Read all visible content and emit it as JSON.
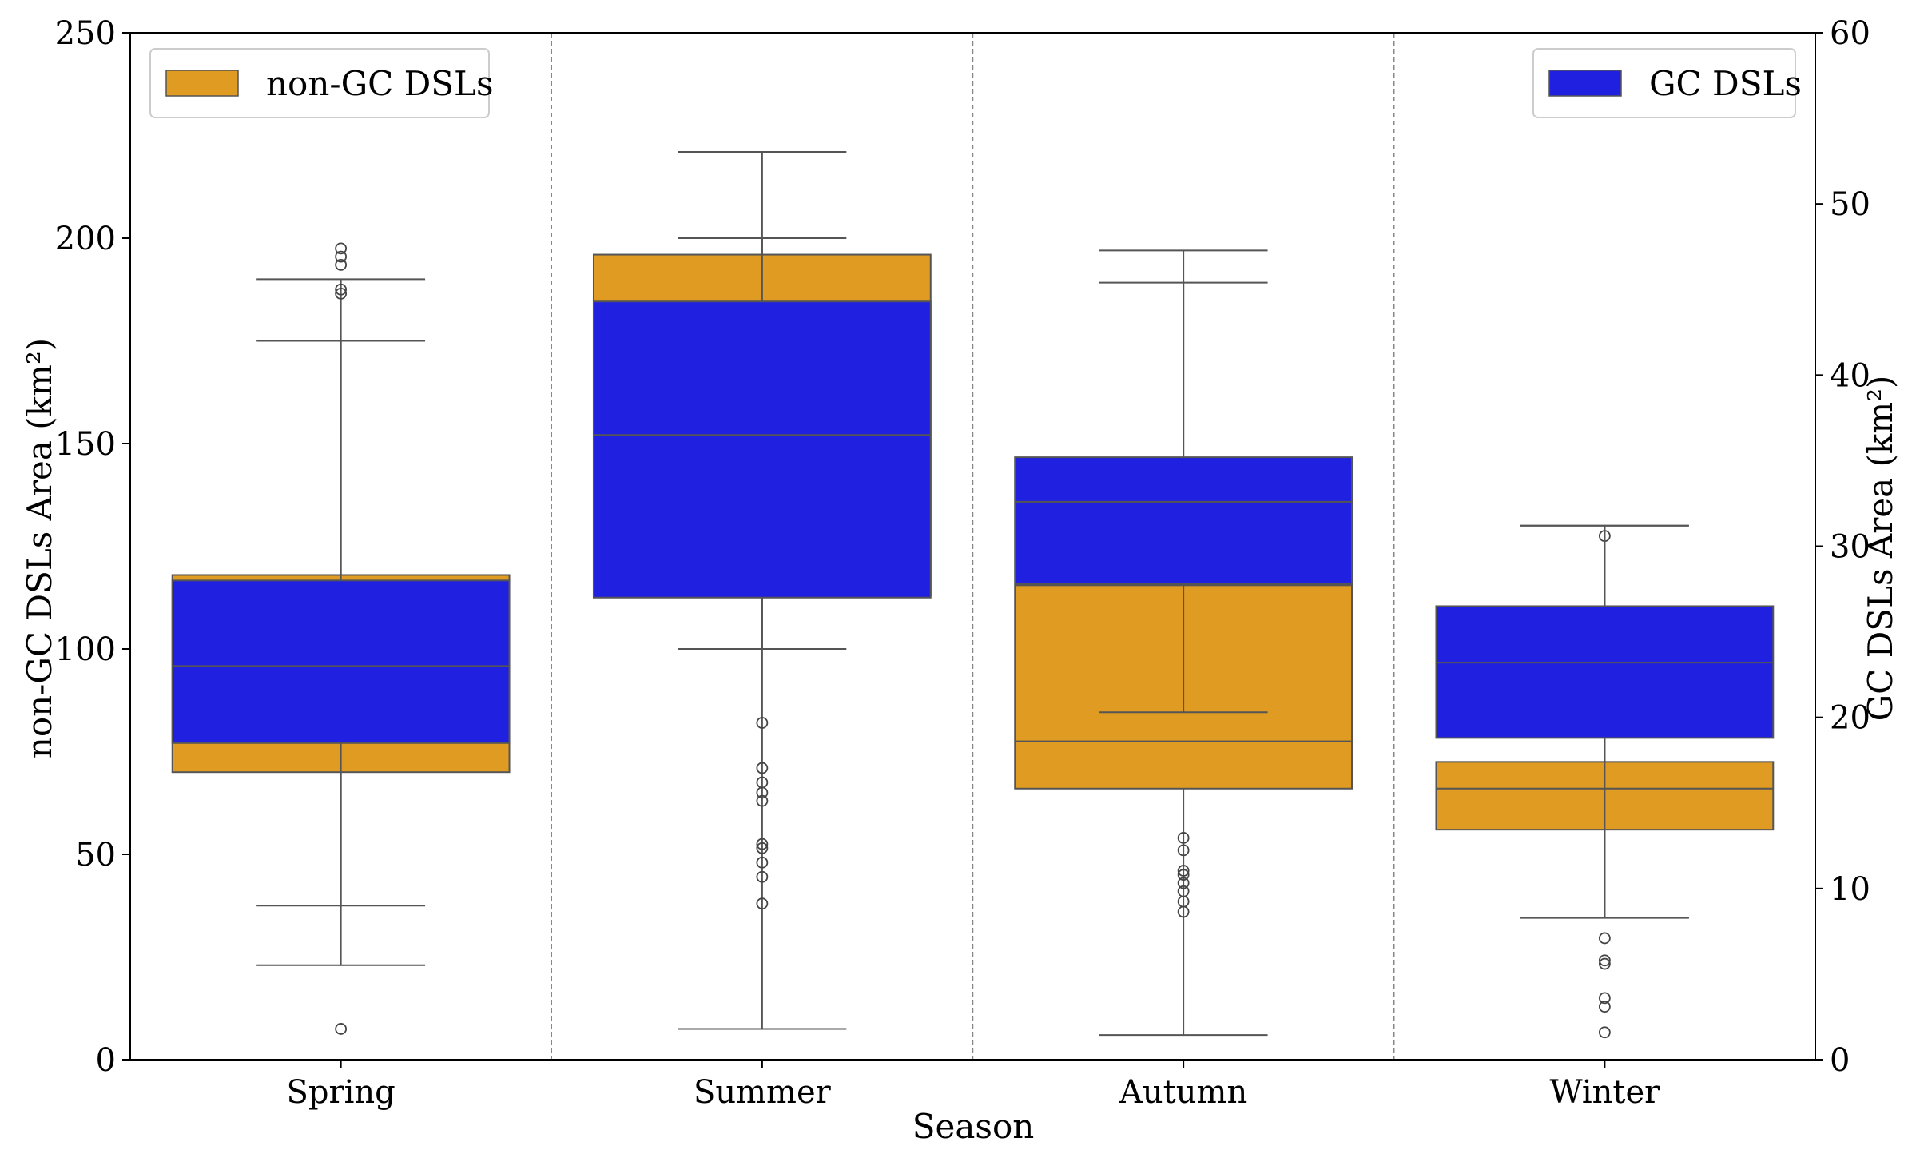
{
  "chart_data": {
    "type": "boxplot",
    "xlabel": "Season",
    "ylabel_left": "non-GC DSLs Area (km²)",
    "ylabel_right": "GC DSLs Area (km²)",
    "categories": [
      "Spring",
      "Summer",
      "Autumn",
      "Winter"
    ],
    "ylim_left": [
      0,
      250
    ],
    "ylim_right": [
      0,
      60
    ],
    "yticks_left": [
      "0",
      "50",
      "100",
      "150",
      "200",
      "250"
    ],
    "yticks_right": [
      "0",
      "10",
      "20",
      "30",
      "40",
      "50",
      "60"
    ],
    "grid": false,
    "series": [
      {
        "name": "non-GC DSLs",
        "axis": "left",
        "color": "#E09B22",
        "legend_position": "top-left",
        "boxes": [
          {
            "category": "Spring",
            "whisker_low": 23,
            "q1": 70,
            "median": 96,
            "q3": 118,
            "whisker_high": 190,
            "outliers": [
              7.5,
              186.5,
              187.5,
              193.5,
              195.5,
              197.5
            ]
          },
          {
            "category": "Summer",
            "whisker_low": 7.5,
            "q1": 113,
            "median": 152,
            "q3": 196,
            "whisker_high": 221,
            "outliers": [
              38,
              44.5,
              48,
              51.5,
              52.5,
              63,
              65,
              67.5,
              71,
              82
            ]
          },
          {
            "category": "Autumn",
            "whisker_low": 6,
            "q1": 66,
            "median": 77.5,
            "q3": 115.5,
            "whisker_high": 197,
            "outliers": [
              36,
              38.5,
              41,
              43,
              45,
              46,
              51,
              54
            ]
          },
          {
            "category": "Winter",
            "whisker_low": 34.5,
            "q1": 56,
            "median": 66,
            "q3": 72.5,
            "whisker_high": 130,
            "outliers": [
              127.5
            ]
          }
        ]
      },
      {
        "name": "GC DSLs",
        "axis": "right",
        "color": "#2020E0",
        "legend_position": "top-right",
        "boxes": [
          {
            "category": "Spring",
            "whisker_low": 9,
            "q1": 18.5,
            "median": 23,
            "q3": 28,
            "whisker_high": 42,
            "outliers": []
          },
          {
            "category": "Summer",
            "whisker_low": 24,
            "q1": 27,
            "median": 36.5,
            "q3": 44.3,
            "whisker_high": 48,
            "outliers": []
          },
          {
            "category": "Autumn",
            "whisker_low": 20.3,
            "q1": 27.8,
            "median": 32.6,
            "q3": 35.2,
            "whisker_high": 45.4,
            "outliers": []
          },
          {
            "category": "Winter",
            "whisker_low": 8.3,
            "q1": 18.8,
            "median": 23.2,
            "q3": 26.5,
            "whisker_high": 31.2,
            "outliers": [
              1.6,
              3.1,
              3.6,
              5.6,
              5.8,
              7.1
            ]
          }
        ]
      }
    ]
  }
}
